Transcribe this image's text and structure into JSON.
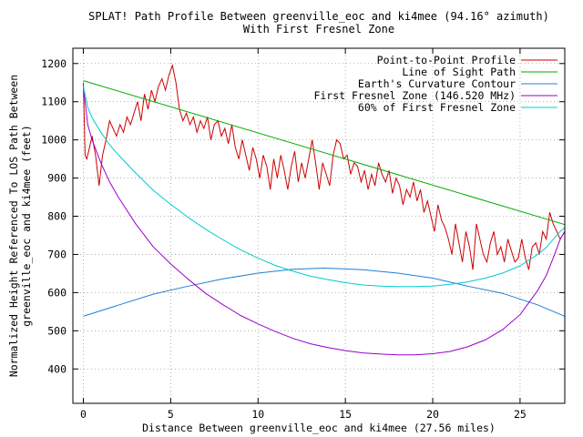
{
  "chart_data": {
    "type": "line",
    "title": "SPLAT! Path Profile Between greenville_eoc and ki4mee (94.16° azimuth)",
    "subtitle": "With First Fresnel Zone",
    "xlabel": "Distance Between greenville_eoc and ki4mee (27.56 miles)",
    "ylabel_line1": "Normalized Height Referenced To LOS Path Between",
    "ylabel_line2": "greenville_eoc and ki4mee (feet)",
    "xlim": [
      -0.6,
      27.56
    ],
    "ylim": [
      310,
      1240
    ],
    "x_ticks": [
      0,
      5,
      10,
      15,
      20,
      25
    ],
    "y_ticks": [
      400,
      500,
      600,
      700,
      800,
      900,
      1000,
      1100,
      1200
    ],
    "grid": true,
    "legend_position": "top-right",
    "series": [
      {
        "name": "Point-to-Point Profile",
        "color": "#cc0000",
        "x": [
          0,
          0.1,
          0.2,
          0.3,
          0.5,
          0.7,
          0.9,
          1.1,
          1.3,
          1.5,
          1.7,
          1.9,
          2.1,
          2.3,
          2.5,
          2.7,
          2.9,
          3.1,
          3.3,
          3.5,
          3.7,
          3.9,
          4.1,
          4.3,
          4.5,
          4.7,
          4.9,
          5.1,
          5.3,
          5.5,
          5.7,
          5.9,
          6.1,
          6.3,
          6.5,
          6.7,
          6.9,
          7.1,
          7.3,
          7.5,
          7.7,
          7.9,
          8.1,
          8.3,
          8.5,
          8.7,
          8.9,
          9.1,
          9.3,
          9.5,
          9.7,
          9.9,
          10.1,
          10.3,
          10.5,
          10.7,
          10.9,
          11.1,
          11.3,
          11.5,
          11.7,
          11.9,
          12.1,
          12.3,
          12.5,
          12.7,
          12.9,
          13.1,
          13.3,
          13.5,
          13.7,
          13.9,
          14.1,
          14.3,
          14.5,
          14.7,
          14.9,
          15.1,
          15.3,
          15.5,
          15.7,
          15.9,
          16.1,
          16.3,
          16.5,
          16.7,
          16.9,
          17.1,
          17.3,
          17.5,
          17.7,
          17.9,
          18.1,
          18.3,
          18.5,
          18.7,
          18.9,
          19.1,
          19.3,
          19.5,
          19.7,
          19.9,
          20.1,
          20.3,
          20.5,
          20.7,
          20.9,
          21.1,
          21.3,
          21.5,
          21.7,
          21.9,
          22.1,
          22.3,
          22.5,
          22.7,
          22.9,
          23.1,
          23.3,
          23.5,
          23.7,
          23.9,
          24.1,
          24.3,
          24.5,
          24.7,
          24.9,
          25.1,
          25.3,
          25.5,
          25.7,
          25.9,
          26.1,
          26.3,
          26.5,
          26.7,
          26.9,
          27.1,
          27.3,
          27.56
        ],
        "y": [
          1150,
          960,
          950,
          970,
          1010,
          960,
          880,
          960,
          1000,
          1050,
          1030,
          1010,
          1040,
          1020,
          1060,
          1040,
          1070,
          1100,
          1050,
          1120,
          1080,
          1130,
          1100,
          1140,
          1160,
          1130,
          1170,
          1195,
          1150,
          1080,
          1050,
          1070,
          1040,
          1060,
          1020,
          1050,
          1030,
          1060,
          1000,
          1040,
          1050,
          1010,
          1030,
          990,
          1040,
          980,
          950,
          1000,
          960,
          920,
          980,
          950,
          900,
          960,
          930,
          870,
          950,
          900,
          960,
          920,
          870,
          930,
          970,
          890,
          940,
          900,
          950,
          1000,
          940,
          870,
          940,
          910,
          880,
          960,
          1000,
          990,
          950,
          960,
          910,
          940,
          930,
          890,
          920,
          870,
          910,
          880,
          940,
          910,
          890,
          920,
          860,
          900,
          880,
          830,
          870,
          850,
          890,
          840,
          870,
          810,
          840,
          800,
          760,
          830,
          790,
          770,
          740,
          700,
          780,
          730,
          680,
          760,
          720,
          660,
          780,
          740,
          700,
          680,
          730,
          760,
          700,
          720,
          680,
          740,
          710,
          680,
          690,
          740,
          690,
          660,
          720,
          730,
          700,
          760,
          740,
          810,
          780,
          760,
          740,
          760
        ]
      },
      {
        "name": "Line of Sight Path",
        "color": "#00aa00",
        "x": [
          0,
          27.56
        ],
        "y": [
          1155,
          778
        ]
      },
      {
        "name": "Earth's Curvature Contour",
        "color": "#1f7fd6",
        "x": [
          0,
          2,
          4,
          6,
          8,
          10,
          12,
          13.78,
          16,
          18,
          20,
          22,
          24,
          26,
          27.56
        ],
        "y": [
          538,
          567,
          596,
          617,
          636,
          651,
          661,
          664,
          660,
          651,
          638,
          617,
          598,
          568,
          538
        ]
      },
      {
        "name": "First Fresnel Zone (146.520 MHz)",
        "color": "#9900cc",
        "x": [
          0,
          0.25,
          0.5,
          1,
          1.5,
          2,
          3,
          4,
          5,
          6,
          7,
          8,
          9,
          10,
          11,
          12,
          13,
          14,
          15,
          16,
          17,
          18,
          19,
          20,
          21,
          22,
          23,
          24,
          25,
          26,
          26.5,
          27,
          27.3,
          27.56
        ],
        "y": [
          1140,
          1040,
          1000,
          940,
          890,
          850,
          780,
          720,
          675,
          635,
          598,
          568,
          540,
          518,
          498,
          480,
          466,
          456,
          448,
          442,
          439,
          437,
          437,
          440,
          446,
          458,
          476,
          503,
          542,
          605,
          645,
          703,
          740,
          760
        ]
      },
      {
        "name": "60% of First Fresnel Zone",
        "color": "#00cccc",
        "x": [
          0,
          0.25,
          0.5,
          1,
          1.5,
          2,
          3,
          4,
          5,
          6,
          7,
          8,
          9,
          10,
          11,
          12,
          13,
          14,
          15,
          16,
          17,
          18,
          19,
          20,
          21,
          22,
          23,
          24,
          25,
          26,
          26.5,
          27,
          27.3,
          27.56
        ],
        "y": [
          1140,
          1085,
          1058,
          1020,
          987,
          961,
          913,
          868,
          831,
          797,
          766,
          738,
          712,
          690,
          671,
          656,
          643,
          634,
          626,
          620,
          617,
          616,
          616,
          617,
          622,
          628,
          638,
          651,
          670,
          700,
          718,
          745,
          760,
          770
        ]
      }
    ]
  }
}
